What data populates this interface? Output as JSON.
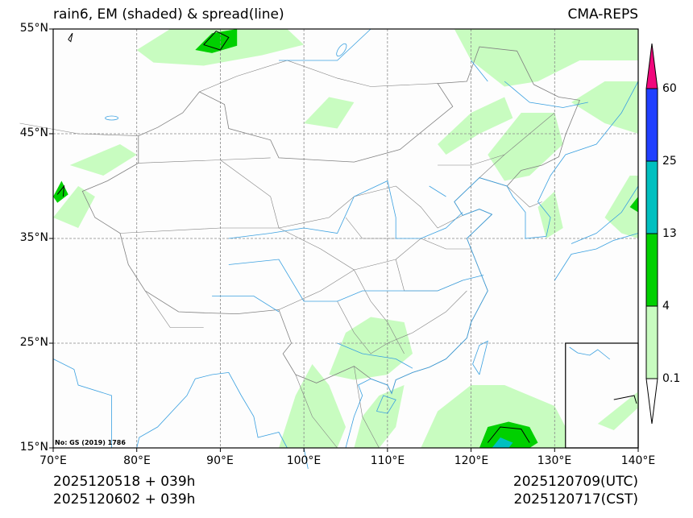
{
  "title": {
    "left": "rain6, EM (shaded) & spread(line)",
    "right": "CMA-REPS"
  },
  "axes": {
    "lat_labels": [
      "55°N",
      "45°N",
      "35°N",
      "25°N",
      "15°N"
    ],
    "lat_values": [
      55,
      45,
      35,
      25,
      15
    ],
    "lon_labels": [
      "70°E",
      "80°E",
      "90°E",
      "100°E",
      "110°E",
      "120°E",
      "130°E",
      "140°E"
    ],
    "lon_values": [
      70,
      80,
      90,
      100,
      110,
      120,
      130,
      140
    ],
    "extent": {
      "lon": [
        70,
        140
      ],
      "lat": [
        15,
        55
      ]
    }
  },
  "map_note": "No: GS (2019) 1786",
  "footer": {
    "init_utc": "2025120518  +  039h",
    "init_cst": "2025120602  +  039h",
    "valid_utc": "2025120709(UTC)",
    "valid_cst": "2025120717(CST)"
  },
  "colorbar": {
    "levels": [
      "0.1",
      "4",
      "13",
      "25",
      "60"
    ],
    "colors": [
      "#ffffff",
      "#c8fcc0",
      "#00d000",
      "#00c0c0",
      "#2040ff",
      "#f0087c"
    ]
  },
  "colors": {
    "river": "#3aa0e0",
    "border": "#808080",
    "grid": "#888888"
  }
}
